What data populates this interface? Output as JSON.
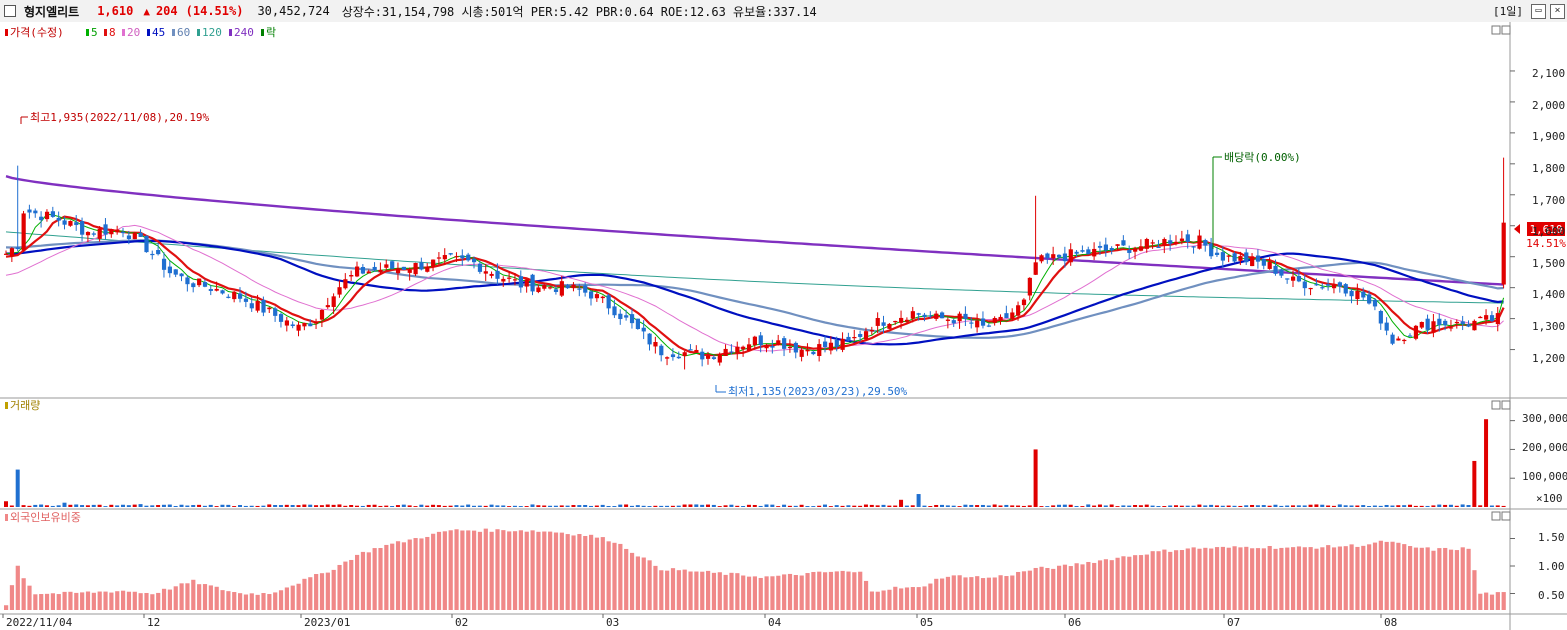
{
  "titlebar": {
    "name": "형지엘리트",
    "price": "1,610",
    "arrow": "▲",
    "change": "204",
    "change_pct": "(14.51%)",
    "volume": "30,452,724",
    "info": "상장수:31,154,798 시총:501억 PER:5.42 PBR:0.64 ROE:12.63 유보율:337.14",
    "period": "[1일]",
    "restore_icon": "restore-icon",
    "close_icon": "close-icon"
  },
  "colors": {
    "up": "#e00000",
    "down": "#1f6fd0",
    "ma5": "#00b000",
    "ma8": "#e01010",
    "ma20": "#e070d0",
    "ma45": "#0010c0",
    "ma60": "#7090c0",
    "ma120": "#30a090",
    "ma240": "#8030c0",
    "foreign_bar": "#f08888"
  },
  "chart_data": [
    {
      "type": "candlestick",
      "panel": "price",
      "legend": [
        {
          "label": "가격(수정)",
          "color": "#e00000"
        },
        {
          "label": "5",
          "color": "#00b000"
        },
        {
          "label": "8",
          "color": "#e01010"
        },
        {
          "label": "20",
          "color": "#e070d0"
        },
        {
          "label": "45",
          "color": "#0010c0"
        },
        {
          "label": "60",
          "color": "#7090c0"
        },
        {
          "label": "120",
          "color": "#30a090"
        },
        {
          "label": "240",
          "color": "#8030c0"
        },
        {
          "label": "락",
          "color": "#008000"
        }
      ],
      "x_labels": [
        "2022/11/04",
        "12",
        "2023/01",
        "02",
        "03",
        "04",
        "05",
        "06",
        "07",
        "08"
      ],
      "y_ticks": [
        "1,200",
        "1,300",
        "1,400",
        "1,500",
        "1,600",
        "1,700",
        "1,800",
        "1,900",
        "2,000",
        "2,100"
      ],
      "ylim": [
        1050,
        2200
      ],
      "current_price_label": "1,610",
      "current_pct_label": "14.51%",
      "annotations": {
        "high": "최고1,935(2022/11/08),20.19%",
        "low": "최저1,135(2023/03/23),29.50%",
        "dividend": "배당락(0.00%)"
      },
      "anchors": [
        [
          0,
          1510
        ],
        [
          2,
          1540
        ],
        [
          3,
          1650
        ],
        [
          5,
          1640
        ],
        [
          9,
          1620
        ],
        [
          14,
          1580
        ],
        [
          20,
          1590
        ],
        [
          24,
          1530
        ],
        [
          28,
          1450
        ],
        [
          31,
          1420
        ],
        [
          35,
          1400
        ],
        [
          40,
          1370
        ],
        [
          46,
          1310
        ],
        [
          50,
          1270
        ],
        [
          53,
          1300
        ],
        [
          56,
          1390
        ],
        [
          60,
          1450
        ],
        [
          64,
          1460
        ],
        [
          70,
          1470
        ],
        [
          76,
          1490
        ],
        [
          80,
          1480
        ],
        [
          84,
          1440
        ],
        [
          88,
          1410
        ],
        [
          92,
          1405
        ],
        [
          96,
          1400
        ],
        [
          100,
          1380
        ],
        [
          104,
          1330
        ],
        [
          108,
          1260
        ],
        [
          112,
          1195
        ],
        [
          116,
          1190
        ],
        [
          120,
          1180
        ],
        [
          124,
          1210
        ],
        [
          128,
          1230
        ],
        [
          132,
          1225
        ],
        [
          136,
          1200
        ],
        [
          140,
          1210
        ],
        [
          144,
          1220
        ],
        [
          148,
          1280
        ],
        [
          151,
          1300
        ],
        [
          155,
          1320
        ],
        [
          159,
          1300
        ],
        [
          163,
          1300
        ],
        [
          167,
          1270
        ],
        [
          170,
          1290
        ],
        [
          174,
          1350
        ],
        [
          176,
          1480
        ],
        [
          180,
          1500
        ],
        [
          184,
          1510
        ],
        [
          188,
          1520
        ],
        [
          192,
          1530
        ],
        [
          196,
          1540
        ],
        [
          200,
          1560
        ],
        [
          204,
          1550
        ],
        [
          206,
          1520
        ],
        [
          208,
          1500
        ],
        [
          212,
          1490
        ],
        [
          216,
          1470
        ],
        [
          220,
          1420
        ],
        [
          224,
          1410
        ],
        [
          228,
          1410
        ],
        [
          232,
          1370
        ],
        [
          235,
          1300
        ],
        [
          237,
          1230
        ],
        [
          240,
          1260
        ],
        [
          244,
          1290
        ],
        [
          248,
          1280
        ],
        [
          252,
          1290
        ],
        [
          255,
          1300
        ],
        [
          256,
          1610
        ]
      ],
      "series": [
        {
          "name": "240",
          "values": [
            [
              0,
              1760
            ],
            [
              256,
              1410
            ]
          ]
        },
        {
          "name": "120",
          "values": [
            [
              0,
              1580
            ],
            [
              256,
              1350
            ]
          ]
        },
        {
          "name": "60",
          "values": [
            [
              0,
              1530
            ],
            [
              256,
              1425
            ]
          ]
        },
        {
          "name": "45",
          "values": [
            [
              0,
              1510
            ],
            [
              256,
              1405
            ]
          ]
        },
        {
          "name": "20",
          "values": [
            [
              0,
              1440
            ],
            [
              256,
              1310
            ]
          ]
        },
        {
          "name": "8",
          "values": [
            [
              0,
              1500
            ],
            [
              256,
              1330
            ]
          ]
        },
        {
          "name": "5",
          "values": [
            [
              0,
              1510
            ],
            [
              256,
              1350
            ]
          ]
        }
      ]
    },
    {
      "type": "bar",
      "panel": "volume",
      "label": "거래량",
      "y_ticks": [
        "100,000",
        "200,000",
        "300,000"
      ],
      "unit": "×100",
      "ylim": [
        0,
        330000
      ],
      "spikes": [
        [
          0,
          20000
        ],
        [
          2,
          130000
        ],
        [
          10,
          15000
        ],
        [
          23,
          10000
        ],
        [
          52,
          8000
        ],
        [
          153,
          25000
        ],
        [
          156,
          45000
        ],
        [
          176,
          200000
        ],
        [
          251,
          160000
        ],
        [
          253,
          305000
        ]
      ]
    },
    {
      "type": "bar",
      "panel": "foreign_ownership",
      "label": "외국인보유비중",
      "y_ticks": [
        "0.50",
        "1.00",
        "1.50"
      ],
      "ylim": [
        0.2,
        1.8
      ],
      "anchors": [
        [
          0,
          0.3
        ],
        [
          2,
          1.0
        ],
        [
          3,
          0.8
        ],
        [
          5,
          0.5
        ],
        [
          10,
          0.5
        ],
        [
          20,
          0.55
        ],
        [
          25,
          0.5
        ],
        [
          32,
          0.72
        ],
        [
          36,
          0.6
        ],
        [
          40,
          0.5
        ],
        [
          45,
          0.5
        ],
        [
          50,
          0.7
        ],
        [
          56,
          0.95
        ],
        [
          60,
          1.2
        ],
        [
          64,
          1.35
        ],
        [
          70,
          1.5
        ],
        [
          76,
          1.65
        ],
        [
          82,
          1.65
        ],
        [
          88,
          1.65
        ],
        [
          94,
          1.62
        ],
        [
          100,
          1.55
        ],
        [
          104,
          1.45
        ],
        [
          108,
          1.2
        ],
        [
          112,
          0.95
        ],
        [
          118,
          0.9
        ],
        [
          124,
          0.85
        ],
        [
          130,
          0.8
        ],
        [
          136,
          0.85
        ],
        [
          142,
          0.9
        ],
        [
          146,
          0.88
        ],
        [
          148,
          0.55
        ],
        [
          152,
          0.6
        ],
        [
          156,
          0.6
        ],
        [
          160,
          0.8
        ],
        [
          164,
          0.82
        ],
        [
          168,
          0.78
        ],
        [
          172,
          0.85
        ],
        [
          176,
          0.95
        ],
        [
          180,
          0.98
        ],
        [
          184,
          1.05
        ],
        [
          190,
          1.15
        ],
        [
          196,
          1.25
        ],
        [
          202,
          1.32
        ],
        [
          208,
          1.33
        ],
        [
          214,
          1.35
        ],
        [
          220,
          1.33
        ],
        [
          226,
          1.35
        ],
        [
          232,
          1.38
        ],
        [
          236,
          1.45
        ],
        [
          240,
          1.35
        ],
        [
          244,
          1.3
        ],
        [
          250,
          1.32
        ],
        [
          252,
          0.5
        ],
        [
          254,
          0.5
        ]
      ]
    }
  ]
}
